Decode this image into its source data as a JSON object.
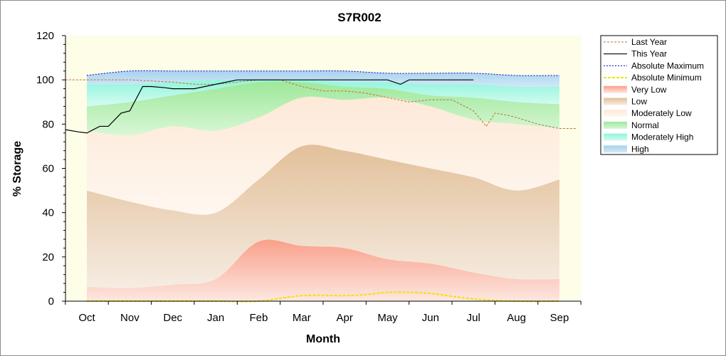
{
  "chart_data": {
    "type": "area",
    "title": "S7R002",
    "xlabel": "Month",
    "ylabel": "% Storage",
    "ylim": [
      0,
      120
    ],
    "yticks": [
      0,
      20,
      40,
      60,
      80,
      100,
      120
    ],
    "months": [
      "Oct",
      "Nov",
      "Dec",
      "Jan",
      "Feb",
      "Mar",
      "Apr",
      "May",
      "Jun",
      "Jul",
      "Aug",
      "Sep"
    ],
    "grid": false,
    "legend_position": "right",
    "colors": {
      "plot_background": "#fdfde8",
      "very_low": "#f9a08a",
      "low": "#e2c09a",
      "moderately_low": "#fde9d8",
      "normal": "#9de89a",
      "moderately_high": "#8ff5dc",
      "high": "#a8d2ee",
      "last_year": "#c0703a",
      "this_year": "#000000",
      "absolute_maximum": "#0000cc",
      "absolute_minimum": "#e8e800"
    },
    "band_boundaries": {
      "x": [
        1,
        2,
        3,
        4,
        5,
        6,
        7,
        8,
        9,
        10,
        11,
        12
      ],
      "very_low_top": [
        6.5,
        6,
        7.5,
        10,
        27,
        25,
        24,
        19,
        17,
        13,
        10,
        10
      ],
      "low_top": [
        50,
        45,
        41,
        40,
        55,
        70,
        68,
        64,
        60,
        56,
        50,
        55
      ],
      "moderately_low_top": [
        77,
        75,
        79,
        77,
        83,
        92,
        91,
        92,
        88,
        82,
        80,
        78
      ],
      "normal_top": [
        88,
        90,
        93,
        96,
        99,
        99,
        97,
        96,
        93,
        92,
        90,
        89
      ],
      "moderately_high_top": [
        98,
        98,
        99,
        100,
        100,
        100,
        99,
        99,
        98,
        98,
        97,
        97
      ],
      "high_top": [
        102,
        104,
        104,
        104,
        104,
        104,
        104,
        103,
        103,
        103,
        102,
        102
      ]
    },
    "series": [
      {
        "name": "Last Year",
        "x": [
          0.5,
          1,
          2,
          3,
          3.5,
          4,
          4.5,
          5,
          5.5,
          6,
          6.5,
          7,
          7.5,
          8,
          8.5,
          9,
          9.5,
          10,
          10.3,
          10.5,
          10.8,
          11,
          11.5,
          12,
          12.4
        ],
        "values": [
          100,
          100,
          100,
          99,
          98,
          98,
          99,
          100,
          100,
          97,
          95,
          95,
          94,
          92,
          90,
          91,
          91,
          86,
          79,
          85,
          84,
          83,
          80,
          78,
          78
        ]
      },
      {
        "name": "This Year",
        "x": [
          0.5,
          0.8,
          1,
          1.3,
          1.5,
          1.8,
          2,
          2.3,
          2.5,
          2.8,
          3,
          3.5,
          4,
          4.5,
          5,
          5.5,
          6,
          6.5,
          7,
          7.5,
          8,
          8.3,
          8.5,
          9,
          9.5,
          10
        ],
        "values": [
          77.5,
          76.5,
          76,
          79,
          79,
          85,
          86,
          97,
          97,
          96.5,
          96,
          96,
          98,
          100,
          100,
          100,
          100,
          100,
          100,
          100,
          100,
          98,
          100,
          100,
          100,
          100
        ]
      },
      {
        "name": "Absolute Maximum",
        "x": [
          1,
          2,
          3,
          4,
          5,
          6,
          7,
          8,
          9,
          10,
          11,
          12
        ],
        "values": [
          102,
          104,
          104,
          104,
          104,
          104,
          104,
          103,
          103,
          103,
          102,
          102
        ]
      },
      {
        "name": "Absolute Minimum",
        "x": [
          1,
          2,
          3,
          4,
          5,
          6,
          7,
          7.5,
          8,
          8.5,
          9,
          10,
          11,
          12
        ],
        "values": [
          0,
          0,
          0,
          0,
          0,
          2.5,
          2.5,
          3,
          4,
          4,
          3.5,
          1,
          0,
          0
        ]
      }
    ],
    "legend": [
      "Last Year",
      "This Year",
      "Absolute Maximum",
      "Absolute Minimum",
      "Very Low",
      "Low",
      "Moderately Low",
      "Normal",
      "Moderately High",
      "High"
    ]
  }
}
